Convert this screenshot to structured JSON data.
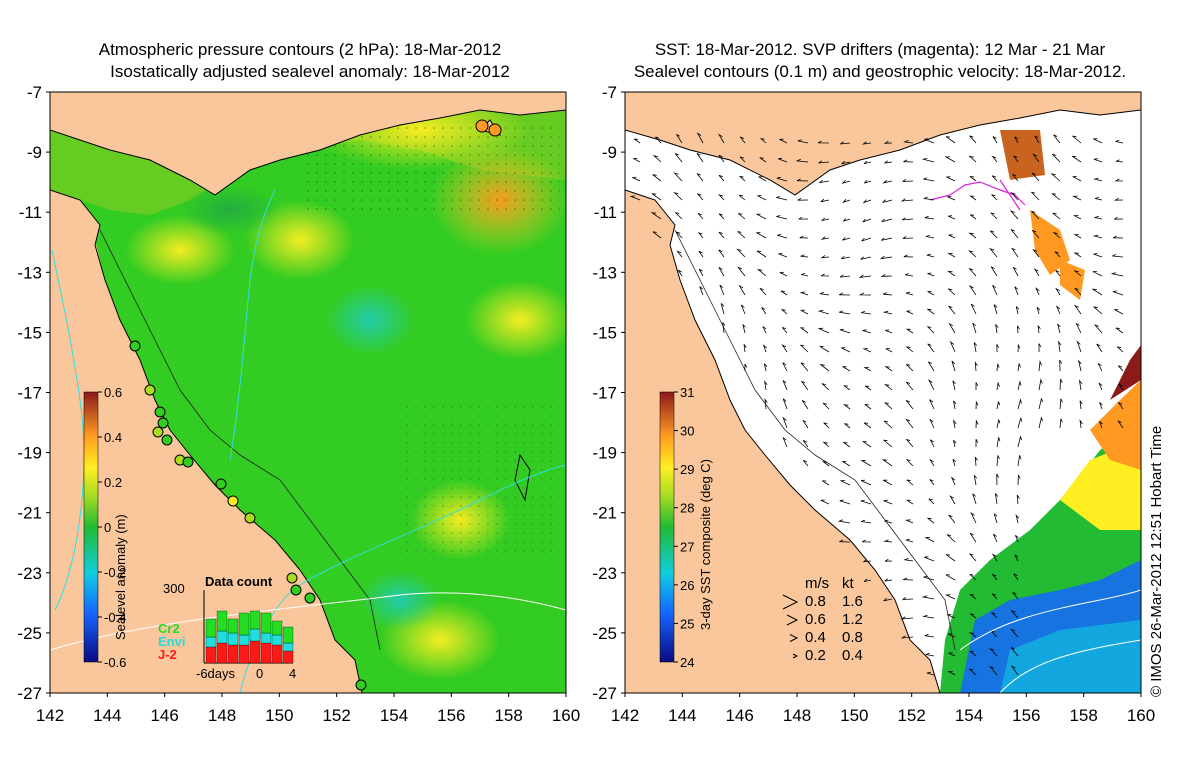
{
  "left_panel": {
    "title_line1": "Atmospheric pressure contours (2 hPa): 18-Mar-2012",
    "title_line2": "Isostatically adjusted sealevel anomaly: 18-Mar-2012",
    "y_ticks": [
      "-7",
      "-9",
      "-11",
      "-13",
      "-15",
      "-17",
      "-19",
      "-21",
      "-23",
      "-25",
      "-27"
    ],
    "x_ticks": [
      "142",
      "144",
      "146",
      "148",
      "150",
      "152",
      "154",
      "156",
      "158",
      "160"
    ],
    "colorbar_label": "Sealevel anomaly (m)",
    "colorbar_ticks": [
      "0.6",
      "0.4",
      "0.2",
      "0",
      "-0.2",
      "-0.4",
      "-0.6"
    ],
    "data_count": {
      "title": "Data count",
      "y_label": "300",
      "legend": [
        {
          "name": "Cr2",
          "color": "#22dd22"
        },
        {
          "name": "Envi",
          "color": "#22dddd"
        },
        {
          "name": "J-2",
          "color": "#ff1a1a"
        }
      ],
      "x_labels": [
        "-6days",
        "0",
        "4"
      ]
    }
  },
  "right_panel": {
    "title_line1": "SST: 18-Mar-2012. SVP drifters (magenta): 12 Mar - 21 Mar",
    "title_line2": "Sealevel contours (0.1 m) and geostrophic velocity: 18-Mar-2012.",
    "y_ticks": [
      "-7",
      "-9",
      "-11",
      "-13",
      "-15",
      "-17",
      "-19",
      "-21",
      "-23",
      "-25",
      "-27"
    ],
    "x_ticks": [
      "142",
      "144",
      "146",
      "148",
      "150",
      "152",
      "154",
      "156",
      "158",
      "160"
    ],
    "colorbar_label": "3-day SST composite (deg C)",
    "colorbar_ticks": [
      "31",
      "30",
      "29",
      "28",
      "27",
      "26",
      "25",
      "24"
    ],
    "velocity_legend": {
      "header": [
        "m/s",
        "kt"
      ],
      "rows": [
        {
          "ms": "0.8",
          "kt": "1.6"
        },
        {
          "ms": "0.6",
          "kt": "1.2"
        },
        {
          "ms": "0.4",
          "kt": "0.8"
        },
        {
          "ms": "0.2",
          "kt": "0.4"
        }
      ]
    }
  },
  "credit": "© IMOS 26-Mar-2012 12:51 Hobart Time",
  "colors": {
    "land": "#f9c79b",
    "sea_anomaly": "#33cc22",
    "sst_empty": "#ffffff",
    "drifter": "#dd22dd"
  }
}
